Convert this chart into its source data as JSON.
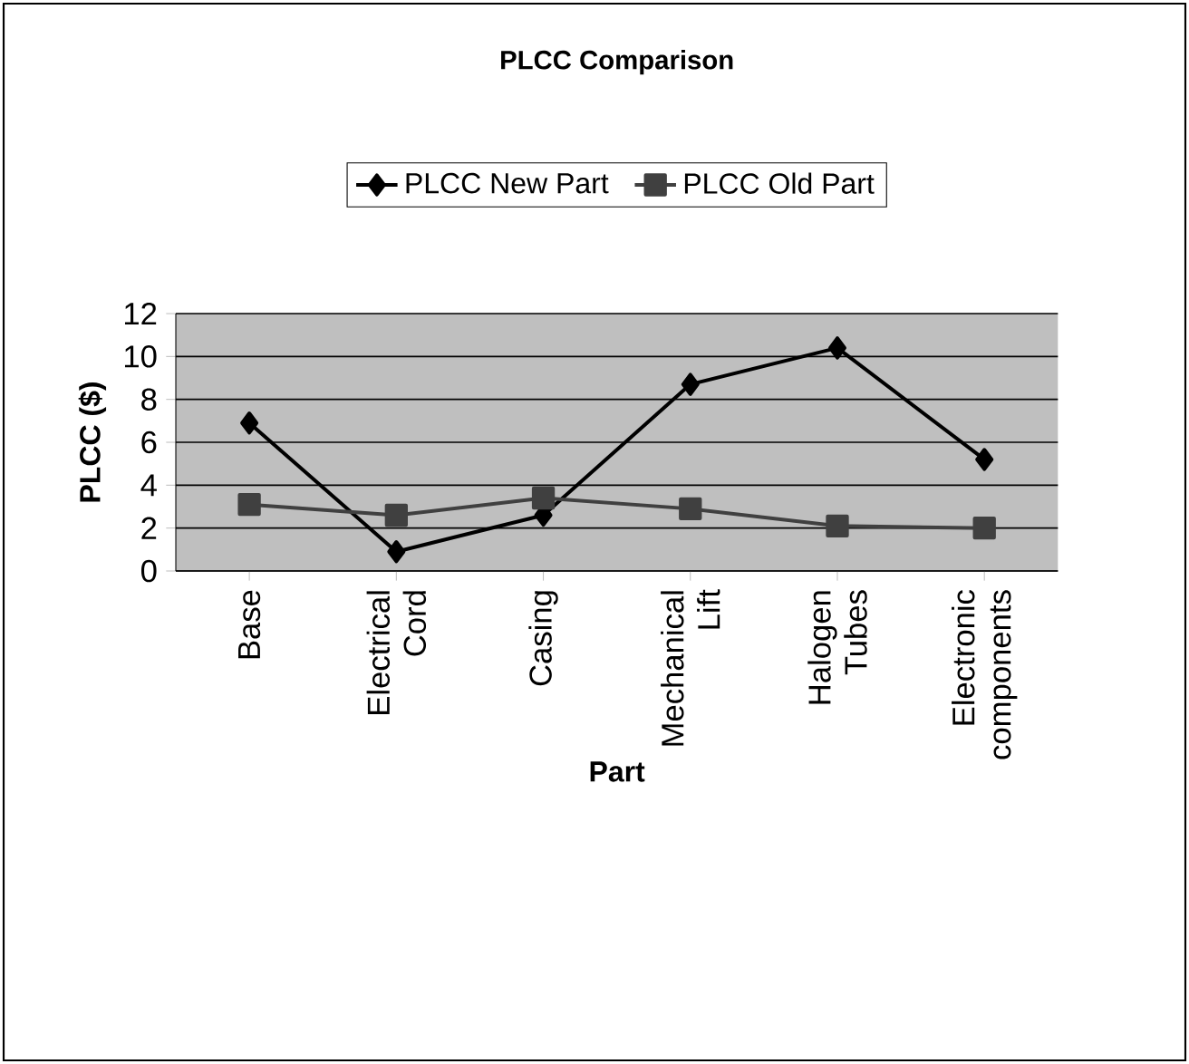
{
  "chart_data": {
    "type": "line",
    "title": "PLCC Comparison",
    "xlabel": "Part",
    "ylabel": "PLCC ($)",
    "categories": [
      "Base",
      "Electrical Cord",
      "Casing",
      "Mechanical Lift",
      "Halogen Tubes",
      "Electronic components"
    ],
    "series": [
      {
        "name": "PLCC New Part",
        "color": "#000000",
        "marker": "diamond",
        "values": [
          6.9,
          0.9,
          2.6,
          8.7,
          10.4,
          5.2
        ]
      },
      {
        "name": "PLCC Old Part",
        "color": "#404040",
        "marker": "square",
        "values": [
          3.1,
          2.6,
          3.4,
          2.9,
          2.1,
          2.0
        ]
      }
    ],
    "ylim": [
      0,
      12
    ],
    "yticks": [
      0,
      2,
      4,
      6,
      8,
      10,
      12
    ],
    "grid": "y",
    "legend": "top",
    "line_style": "solid"
  }
}
